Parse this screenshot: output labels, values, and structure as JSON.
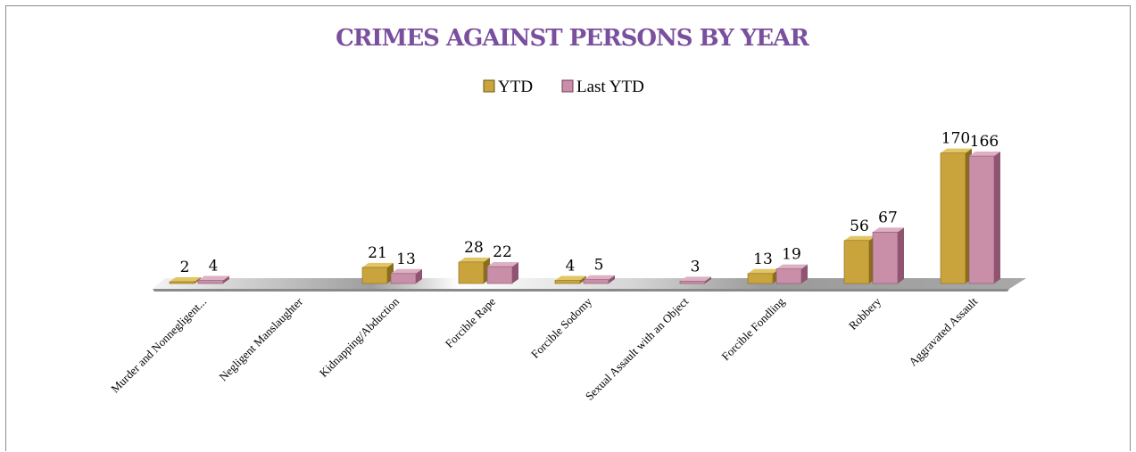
{
  "chart_data": {
    "type": "bar",
    "title": "CRIMES AGAINST PERSONS BY YEAR",
    "legend_position": "top-center",
    "grid": false,
    "categories": [
      "Murder and  Nonnegligent...",
      "Negligent Manslaughter",
      "Kidnapping/Abduction",
      "Forcible Rape",
      "Forcible Sodomy",
      "Sexual Assault with an Object",
      "Forcible Fondling",
      "Robbery",
      "Aggravated  Assault"
    ],
    "series": [
      {
        "name": "YTD",
        "values": [
          2,
          null,
          21,
          28,
          4,
          null,
          13,
          56,
          170
        ]
      },
      {
        "name": "Last YTD",
        "values": [
          4,
          null,
          13,
          22,
          5,
          3,
          19,
          67,
          166
        ]
      }
    ],
    "ylim": [
      0,
      180
    ]
  },
  "colors": {
    "title": "#7a4f9e",
    "ytd_front": "#c9a43c",
    "ytd_side": "#8a6d1c",
    "ytd_top": "#e2c565",
    "last_front": "#c98fa8",
    "last_side": "#8e5470",
    "last_top": "#ddb0c3",
    "floor_light": "#f2f2f2",
    "floor_dark": "#b3b3b3"
  }
}
